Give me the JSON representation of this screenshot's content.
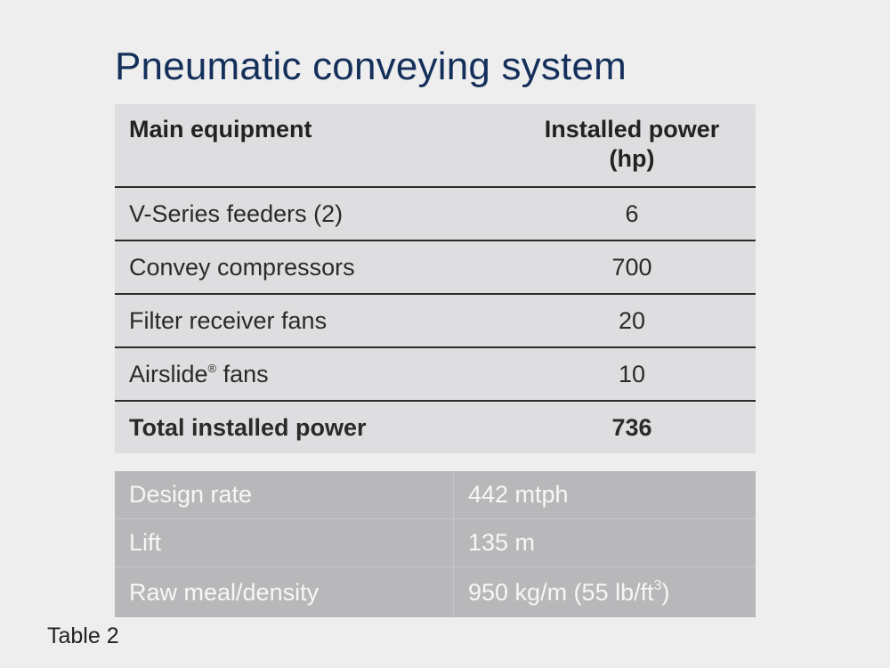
{
  "title": "Pneumatic conveying system",
  "equipment_table": {
    "headers": [
      "Main equipment",
      "Installed power",
      "(hp)"
    ],
    "rows": [
      {
        "equipment": "V-Series feeders (2)",
        "power": "6"
      },
      {
        "equipment": "Convey compressors",
        "power": "700"
      },
      {
        "equipment": "Filter receiver fans",
        "power": "20"
      },
      {
        "equipment": "Airslide",
        "trademark": "®",
        "equipment_suffix": " fans",
        "power": "10"
      }
    ],
    "total": {
      "label": "Total installed power",
      "power": "736"
    }
  },
  "specs_table": {
    "rows": [
      {
        "label": "Design rate",
        "value": "442 mtph"
      },
      {
        "label": "Lift",
        "value": "135 m"
      },
      {
        "label": "Raw meal/density",
        "value": "950 kg/m (55 lb/ft",
        "value_sup": "3",
        "value_suffix": ")"
      }
    ]
  },
  "caption": "Table 2"
}
